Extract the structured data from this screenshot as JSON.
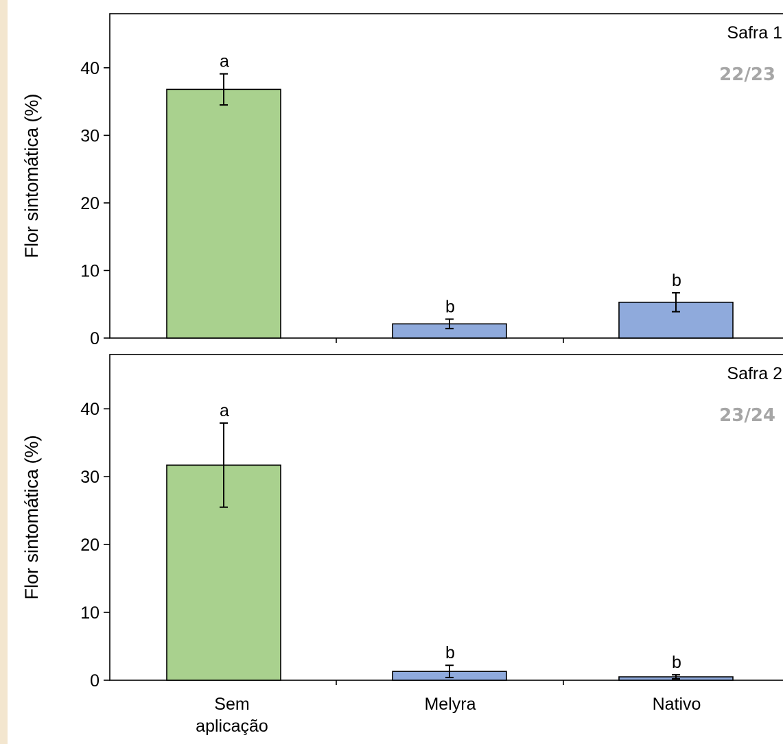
{
  "chart_data": [
    {
      "type": "bar",
      "panel_label": "Safra 1",
      "season": "22/23",
      "ylabel": "Flor sintomática (%)",
      "ylim": [
        0,
        48
      ],
      "yticks": [
        0,
        10,
        20,
        30,
        40
      ],
      "categories": [
        "Sem aplicação",
        "Melyra",
        "Nativo"
      ],
      "values": [
        36.8,
        2.1,
        5.3
      ],
      "errors": [
        2.3,
        0.7,
        1.4
      ],
      "letters": [
        "a",
        "b",
        "b"
      ],
      "bar_colors": [
        "#a9d18e",
        "#8faadc",
        "#8faadc"
      ],
      "show_category_labels": false
    },
    {
      "type": "bar",
      "panel_label": "Safra 2",
      "season": "23/24",
      "ylabel": "Flor sintomática (%)",
      "ylim": [
        0,
        48
      ],
      "yticks": [
        0,
        10,
        20,
        30,
        40
      ],
      "categories": [
        "Sem aplicação",
        "Melyra",
        "Nativo"
      ],
      "category_display": [
        [
          "Sem",
          "aplicação"
        ],
        [
          "Melyra"
        ],
        [
          "Nativo"
        ]
      ],
      "values": [
        31.7,
        1.3,
        0.5
      ],
      "errors": [
        6.2,
        0.9,
        0.3
      ],
      "letters": [
        "a",
        "b",
        "b"
      ],
      "bar_colors": [
        "#a9d18e",
        "#8faadc",
        "#8faadc"
      ],
      "show_category_labels": true
    }
  ]
}
